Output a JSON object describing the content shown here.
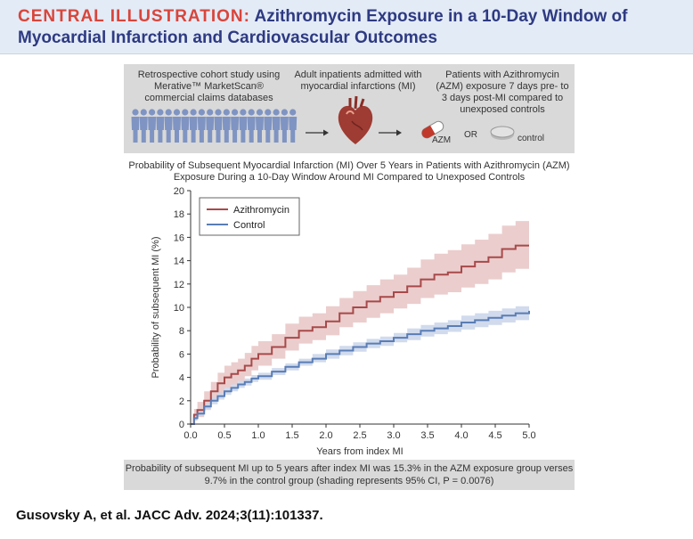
{
  "header": {
    "tag": "CENTRAL ILLUSTRATION:",
    "title_line1": "Azithromycin Exposure in a 10-Day Window of",
    "title_line2": "Myocardial Infarction and Cardiovascular Outcomes"
  },
  "study_design": {
    "step1": "Retrospective cohort study using Merative™ MarketScan® commercial claims databases",
    "step2": "Adult inpatients admitted with myocardial infarctions (MI)",
    "step3": "Patients with Azithromycin (AZM) exposure 7 days pre- to 3 days post-MI compared to unexposed controls",
    "azm_label": "AZM",
    "or_label": "OR",
    "control_label": "control"
  },
  "plot_title": "Probability of Subsequent Myocardial Infarction (MI) Over 5 Years in Patients with Azithromycin (AZM) Exposure During a 10-Day Window Around MI Compared to Unexposed Controls",
  "chart_data": {
    "type": "line",
    "title": "Probability of Subsequent Myocardial Infarction (MI) Over 5 Years in Patients with Azithromycin (AZM) Exposure During a 10-Day Window Around MI Compared to Unexposed Controls",
    "xlabel": "Years from index MI",
    "ylabel": "Probability of subsequent MI (%)",
    "xlim": [
      0,
      5
    ],
    "ylim": [
      0,
      20
    ],
    "x_ticks": [
      "0.0",
      "0.5",
      "1.0",
      "1.5",
      "2.0",
      "2.5",
      "3.0",
      "3.5",
      "4.0",
      "4.5",
      "5.0"
    ],
    "y_ticks": [
      "0",
      "2",
      "4",
      "6",
      "8",
      "10",
      "12",
      "14",
      "16",
      "18",
      "20"
    ],
    "legend_position": "top-left",
    "x": [
      0,
      0.05,
      0.1,
      0.2,
      0.3,
      0.4,
      0.5,
      0.6,
      0.7,
      0.8,
      0.9,
      1.0,
      1.2,
      1.4,
      1.6,
      1.8,
      2.0,
      2.2,
      2.4,
      2.6,
      2.8,
      3.0,
      3.2,
      3.4,
      3.6,
      3.8,
      4.0,
      4.2,
      4.4,
      4.6,
      4.8,
      5.0
    ],
    "series": [
      {
        "name": "Azithromycin",
        "color": "#a8494a",
        "band_color": "#e8c4c4",
        "values": [
          0,
          0.8,
          1.2,
          2.0,
          2.8,
          3.5,
          4.0,
          4.3,
          4.6,
          5.0,
          5.6,
          6.0,
          6.6,
          7.4,
          8.0,
          8.3,
          8.8,
          9.5,
          10.0,
          10.5,
          10.9,
          11.3,
          11.8,
          12.4,
          12.8,
          13.0,
          13.5,
          13.9,
          14.3,
          15.0,
          15.3,
          15.3
        ],
        "lower": [
          0,
          0.3,
          0.6,
          1.3,
          2.0,
          2.6,
          3.1,
          3.4,
          3.7,
          4.1,
          4.6,
          5.0,
          5.6,
          6.3,
          6.9,
          7.2,
          7.6,
          8.3,
          8.7,
          9.1,
          9.5,
          9.9,
          10.3,
          10.8,
          11.1,
          11.3,
          11.7,
          12.0,
          12.4,
          13.0,
          13.3,
          13.3
        ],
        "upper": [
          0,
          1.3,
          1.9,
          2.8,
          3.6,
          4.4,
          5.0,
          5.3,
          5.6,
          6.1,
          6.7,
          7.1,
          7.7,
          8.6,
          9.2,
          9.5,
          10.1,
          10.8,
          11.4,
          11.9,
          12.4,
          12.8,
          13.4,
          14.1,
          14.6,
          14.9,
          15.4,
          15.8,
          16.3,
          17.0,
          17.4,
          17.4
        ]
      },
      {
        "name": "Control",
        "color": "#5a7db5",
        "band_color": "#c9d5ea",
        "values": [
          0,
          0.5,
          0.9,
          1.5,
          2.0,
          2.4,
          2.8,
          3.1,
          3.4,
          3.6,
          3.9,
          4.1,
          4.5,
          4.9,
          5.3,
          5.6,
          6.0,
          6.3,
          6.6,
          6.9,
          7.1,
          7.4,
          7.7,
          8.0,
          8.2,
          8.4,
          8.7,
          8.9,
          9.1,
          9.3,
          9.5,
          9.7
        ],
        "lower": [
          0,
          0.3,
          0.7,
          1.2,
          1.7,
          2.1,
          2.5,
          2.8,
          3.1,
          3.3,
          3.6,
          3.8,
          4.2,
          4.6,
          5.0,
          5.3,
          5.6,
          5.9,
          6.2,
          6.5,
          6.7,
          7.0,
          7.2,
          7.5,
          7.7,
          7.9,
          8.1,
          8.3,
          8.5,
          8.7,
          8.9,
          9.0
        ],
        "upper": [
          0,
          0.7,
          1.1,
          1.8,
          2.3,
          2.7,
          3.1,
          3.4,
          3.7,
          3.9,
          4.2,
          4.4,
          4.8,
          5.2,
          5.6,
          6.0,
          6.4,
          6.7,
          7.0,
          7.3,
          7.5,
          7.8,
          8.2,
          8.5,
          8.7,
          8.9,
          9.3,
          9.5,
          9.7,
          9.9,
          10.1,
          10.4
        ]
      }
    ]
  },
  "caption": "Probability of subsequent MI up to 5 years after index MI was 15.3% in the AZM exposure group verses 9.7% in the control group (shading represents 95% CI, P = 0.0076)",
  "citation": "Gusovsky A, et al. JACC Adv. 2024;3(11):101337."
}
